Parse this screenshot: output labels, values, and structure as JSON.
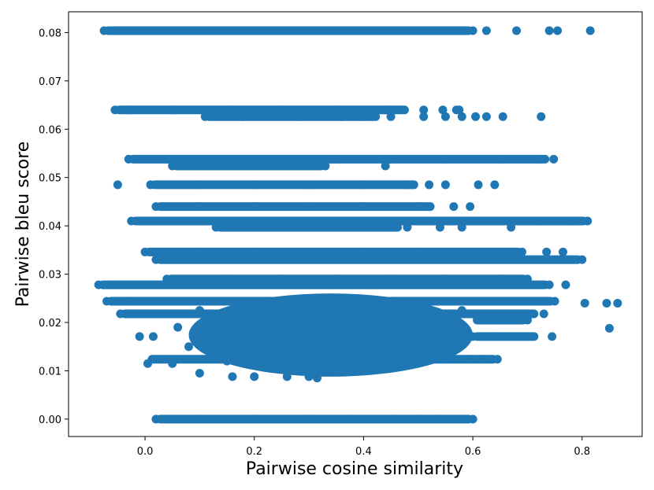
{
  "chart_data": {
    "type": "scatter",
    "title": "",
    "xlabel": "Pairwise cosine similarity",
    "ylabel": "Pairwise bleu score",
    "xlim": [
      -0.14,
      0.91
    ],
    "ylim": [
      -0.0036,
      0.0843
    ],
    "xticks": [
      0.0,
      0.2,
      0.4,
      0.6,
      0.8
    ],
    "xtick_labels": [
      "0.0",
      "0.2",
      "0.4",
      "0.6",
      "0.8"
    ],
    "yticks": [
      0.0,
      0.01,
      0.02,
      0.03,
      0.04,
      0.05,
      0.06,
      0.07,
      0.08
    ],
    "ytick_labels": [
      "0.00",
      "0.01",
      "0.02",
      "0.03",
      "0.04",
      "0.05",
      "0.06",
      "0.07",
      "0.08"
    ],
    "grid": false,
    "legend": "none",
    "color": "#1f77b4",
    "series": [
      {
        "values": [
          {
            "x": -0.075,
            "y": 0.0804
          },
          {
            "x": -0.06,
            "y": 0.0804
          },
          {
            "x": 0.0,
            "y": 0.0804
          },
          {
            "x": 0.1,
            "y": 0.0804
          },
          {
            "x": 0.2,
            "y": 0.0804
          },
          {
            "x": 0.3,
            "y": 0.0804
          },
          {
            "x": 0.4,
            "y": 0.0804
          },
          {
            "x": 0.5,
            "y": 0.0804
          },
          {
            "x": 0.58,
            "y": 0.0804
          },
          {
            "x": 0.6,
            "y": 0.0804
          },
          {
            "x": 0.625,
            "y": 0.0804
          },
          {
            "x": 0.68,
            "y": 0.0804
          },
          {
            "x": 0.74,
            "y": 0.0804
          },
          {
            "x": 0.755,
            "y": 0.0804
          },
          {
            "x": 0.815,
            "y": 0.0804
          },
          {
            "x": -0.055,
            "y": 0.064
          },
          {
            "x": -0.03,
            "y": 0.064
          },
          {
            "x": 0.05,
            "y": 0.064
          },
          {
            "x": 0.15,
            "y": 0.064
          },
          {
            "x": 0.25,
            "y": 0.064
          },
          {
            "x": 0.35,
            "y": 0.064
          },
          {
            "x": 0.44,
            "y": 0.064
          },
          {
            "x": 0.475,
            "y": 0.064
          },
          {
            "x": 0.51,
            "y": 0.064
          },
          {
            "x": 0.545,
            "y": 0.064
          },
          {
            "x": 0.57,
            "y": 0.064
          },
          {
            "x": 0.575,
            "y": 0.064
          },
          {
            "x": 0.11,
            "y": 0.0626
          },
          {
            "x": 0.18,
            "y": 0.0626
          },
          {
            "x": 0.28,
            "y": 0.0626
          },
          {
            "x": 0.36,
            "y": 0.0626
          },
          {
            "x": 0.4,
            "y": 0.0626
          },
          {
            "x": 0.45,
            "y": 0.0626
          },
          {
            "x": 0.51,
            "y": 0.0626
          },
          {
            "x": 0.55,
            "y": 0.0626
          },
          {
            "x": 0.58,
            "y": 0.0626
          },
          {
            "x": 0.605,
            "y": 0.0626
          },
          {
            "x": 0.625,
            "y": 0.0626
          },
          {
            "x": 0.655,
            "y": 0.0626
          },
          {
            "x": 0.725,
            "y": 0.0626
          },
          {
            "x": -0.03,
            "y": 0.0538
          },
          {
            "x": 0.05,
            "y": 0.0538
          },
          {
            "x": 0.15,
            "y": 0.0538
          },
          {
            "x": 0.25,
            "y": 0.0538
          },
          {
            "x": 0.35,
            "y": 0.0538
          },
          {
            "x": 0.45,
            "y": 0.0538
          },
          {
            "x": 0.55,
            "y": 0.0538
          },
          {
            "x": 0.65,
            "y": 0.0538
          },
          {
            "x": 0.72,
            "y": 0.0538
          },
          {
            "x": 0.748,
            "y": 0.0538
          },
          {
            "x": 0.05,
            "y": 0.0524
          },
          {
            "x": 0.1,
            "y": 0.0524
          },
          {
            "x": 0.2,
            "y": 0.0524
          },
          {
            "x": 0.28,
            "y": 0.0524
          },
          {
            "x": 0.33,
            "y": 0.0524
          },
          {
            "x": 0.44,
            "y": 0.0524
          },
          {
            "x": -0.05,
            "y": 0.0485
          },
          {
            "x": 0.01,
            "y": 0.0485
          },
          {
            "x": 0.1,
            "y": 0.0485
          },
          {
            "x": 0.2,
            "y": 0.0485
          },
          {
            "x": 0.3,
            "y": 0.0485
          },
          {
            "x": 0.4,
            "y": 0.0485
          },
          {
            "x": 0.48,
            "y": 0.0485
          },
          {
            "x": 0.52,
            "y": 0.0485
          },
          {
            "x": 0.55,
            "y": 0.0485
          },
          {
            "x": 0.61,
            "y": 0.0485
          },
          {
            "x": 0.64,
            "y": 0.0485
          },
          {
            "x": 0.02,
            "y": 0.044
          },
          {
            "x": 0.1,
            "y": 0.044
          },
          {
            "x": 0.2,
            "y": 0.044
          },
          {
            "x": 0.3,
            "y": 0.044
          },
          {
            "x": 0.4,
            "y": 0.044
          },
          {
            "x": 0.5,
            "y": 0.044
          },
          {
            "x": 0.565,
            "y": 0.044
          },
          {
            "x": 0.595,
            "y": 0.044
          },
          {
            "x": -0.025,
            "y": 0.041
          },
          {
            "x": 0.05,
            "y": 0.041
          },
          {
            "x": 0.15,
            "y": 0.041
          },
          {
            "x": 0.25,
            "y": 0.041
          },
          {
            "x": 0.35,
            "y": 0.041
          },
          {
            "x": 0.45,
            "y": 0.041
          },
          {
            "x": 0.55,
            "y": 0.041
          },
          {
            "x": 0.65,
            "y": 0.041
          },
          {
            "x": 0.72,
            "y": 0.041
          },
          {
            "x": 0.78,
            "y": 0.041
          },
          {
            "x": 0.81,
            "y": 0.041
          },
          {
            "x": 0.13,
            "y": 0.0397
          },
          {
            "x": 0.2,
            "y": 0.0397
          },
          {
            "x": 0.3,
            "y": 0.0397
          },
          {
            "x": 0.4,
            "y": 0.0397
          },
          {
            "x": 0.48,
            "y": 0.0397
          },
          {
            "x": 0.54,
            "y": 0.0397
          },
          {
            "x": 0.58,
            "y": 0.0397
          },
          {
            "x": 0.67,
            "y": 0.0397
          },
          {
            "x": 0.0,
            "y": 0.0346
          },
          {
            "x": 0.1,
            "y": 0.0346
          },
          {
            "x": 0.2,
            "y": 0.0346
          },
          {
            "x": 0.3,
            "y": 0.0346
          },
          {
            "x": 0.4,
            "y": 0.0346
          },
          {
            "x": 0.5,
            "y": 0.0346
          },
          {
            "x": 0.6,
            "y": 0.0346
          },
          {
            "x": 0.69,
            "y": 0.0346
          },
          {
            "x": 0.735,
            "y": 0.0346
          },
          {
            "x": 0.765,
            "y": 0.0346
          },
          {
            "x": 0.02,
            "y": 0.033
          },
          {
            "x": 0.1,
            "y": 0.033
          },
          {
            "x": 0.2,
            "y": 0.033
          },
          {
            "x": 0.3,
            "y": 0.033
          },
          {
            "x": 0.4,
            "y": 0.033
          },
          {
            "x": 0.5,
            "y": 0.033
          },
          {
            "x": 0.6,
            "y": 0.033
          },
          {
            "x": 0.7,
            "y": 0.033
          },
          {
            "x": 0.8,
            "y": 0.033
          },
          {
            "x": 0.04,
            "y": 0.029
          },
          {
            "x": 0.15,
            "y": 0.029
          },
          {
            "x": 0.25,
            "y": 0.029
          },
          {
            "x": 0.35,
            "y": 0.029
          },
          {
            "x": 0.45,
            "y": 0.029
          },
          {
            "x": 0.55,
            "y": 0.029
          },
          {
            "x": 0.65,
            "y": 0.029
          },
          {
            "x": 0.7,
            "y": 0.029
          },
          {
            "x": -0.085,
            "y": 0.0278
          },
          {
            "x": -0.045,
            "y": 0.0278
          },
          {
            "x": 0.05,
            "y": 0.0278
          },
          {
            "x": 0.15,
            "y": 0.0278
          },
          {
            "x": 0.25,
            "y": 0.0278
          },
          {
            "x": 0.35,
            "y": 0.0278
          },
          {
            "x": 0.45,
            "y": 0.0278
          },
          {
            "x": 0.55,
            "y": 0.0278
          },
          {
            "x": 0.65,
            "y": 0.0278
          },
          {
            "x": 0.74,
            "y": 0.0278
          },
          {
            "x": 0.77,
            "y": 0.0278
          },
          {
            "x": -0.07,
            "y": 0.0244
          },
          {
            "x": -0.03,
            "y": 0.0244
          },
          {
            "x": 0.02,
            "y": 0.0244
          },
          {
            "x": 0.6,
            "y": 0.0244
          },
          {
            "x": 0.7,
            "y": 0.0244
          },
          {
            "x": 0.75,
            "y": 0.0244
          },
          {
            "x": 0.805,
            "y": 0.024
          },
          {
            "x": 0.845,
            "y": 0.024
          },
          {
            "x": 0.865,
            "y": 0.024
          },
          {
            "x": -0.045,
            "y": 0.0218
          },
          {
            "x": 0.0,
            "y": 0.0218
          },
          {
            "x": 0.6,
            "y": 0.0218
          },
          {
            "x": 0.67,
            "y": 0.0218
          },
          {
            "x": 0.7,
            "y": 0.0218
          },
          {
            "x": 0.73,
            "y": 0.0218
          },
          {
            "x": 0.85,
            "y": 0.0188
          },
          {
            "x": 0.63,
            "y": 0.0205
          },
          {
            "x": 0.66,
            "y": 0.0205
          },
          {
            "x": 0.7,
            "y": 0.0205
          },
          {
            "x": -0.01,
            "y": 0.0171
          },
          {
            "x": 0.015,
            "y": 0.0171
          },
          {
            "x": 0.6,
            "y": 0.0171
          },
          {
            "x": 0.64,
            "y": 0.0171
          },
          {
            "x": 0.745,
            "y": 0.0171
          },
          {
            "x": 0.005,
            "y": 0.0115
          },
          {
            "x": 0.05,
            "y": 0.0115
          },
          {
            "x": 0.55,
            "y": 0.0124
          },
          {
            "x": 0.59,
            "y": 0.0124
          },
          {
            "x": 0.62,
            "y": 0.0124
          },
          {
            "x": 0.645,
            "y": 0.0124
          },
          {
            "x": 0.1,
            "y": 0.0095
          },
          {
            "x": 0.16,
            "y": 0.0088
          },
          {
            "x": 0.2,
            "y": 0.0088
          },
          {
            "x": 0.26,
            "y": 0.0088
          },
          {
            "x": 0.3,
            "y": 0.0088
          },
          {
            "x": 0.315,
            "y": 0.0085
          },
          {
            "x": 0.06,
            "y": 0.019
          },
          {
            "x": 0.12,
            "y": 0.019
          },
          {
            "x": 0.18,
            "y": 0.019
          },
          {
            "x": 0.24,
            "y": 0.019
          },
          {
            "x": 0.3,
            "y": 0.019
          },
          {
            "x": 0.36,
            "y": 0.019
          },
          {
            "x": 0.42,
            "y": 0.019
          },
          {
            "x": 0.48,
            "y": 0.019
          },
          {
            "x": 0.52,
            "y": 0.019
          },
          {
            "x": 0.56,
            "y": 0.017
          },
          {
            "x": 0.08,
            "y": 0.015
          },
          {
            "x": 0.14,
            "y": 0.015
          },
          {
            "x": 0.2,
            "y": 0.015
          },
          {
            "x": 0.26,
            "y": 0.015
          },
          {
            "x": 0.32,
            "y": 0.015
          },
          {
            "x": 0.38,
            "y": 0.015
          },
          {
            "x": 0.44,
            "y": 0.015
          },
          {
            "x": 0.5,
            "y": 0.015
          },
          {
            "x": 0.55,
            "y": 0.0145
          },
          {
            "x": 0.1,
            "y": 0.0225
          },
          {
            "x": 0.16,
            "y": 0.0225
          },
          {
            "x": 0.22,
            "y": 0.0225
          },
          {
            "x": 0.28,
            "y": 0.0225
          },
          {
            "x": 0.34,
            "y": 0.0225
          },
          {
            "x": 0.4,
            "y": 0.0225
          },
          {
            "x": 0.46,
            "y": 0.0225
          },
          {
            "x": 0.52,
            "y": 0.0225
          },
          {
            "x": 0.58,
            "y": 0.0225
          },
          {
            "x": 0.15,
            "y": 0.012
          },
          {
            "x": 0.22,
            "y": 0.012
          },
          {
            "x": 0.29,
            "y": 0.012
          },
          {
            "x": 0.36,
            "y": 0.012
          },
          {
            "x": 0.43,
            "y": 0.012
          },
          {
            "x": 0.5,
            "y": 0.012
          },
          {
            "x": 0.02,
            "y": 0.0
          },
          {
            "x": 0.1,
            "y": 0.0
          },
          {
            "x": 0.2,
            "y": 0.0
          },
          {
            "x": 0.3,
            "y": 0.0
          },
          {
            "x": 0.38,
            "y": 0.0
          },
          {
            "x": 0.46,
            "y": 0.0
          },
          {
            "x": 0.5,
            "y": 0.0
          },
          {
            "x": 0.54,
            "y": 0.0
          },
          {
            "x": 0.6,
            "y": 0.0
          }
        ]
      }
    ],
    "bands": [
      {
        "x0": -0.075,
        "x1": 0.6,
        "y": 0.0804
      },
      {
        "x0": -0.055,
        "x1": 0.48,
        "y": 0.064
      },
      {
        "x0": 0.11,
        "x1": 0.43,
        "y": 0.0626
      },
      {
        "x0": -0.03,
        "x1": 0.74,
        "y": 0.0538
      },
      {
        "x0": 0.05,
        "x1": 0.33,
        "y": 0.0524
      },
      {
        "x0": 0.01,
        "x1": 0.5,
        "y": 0.0485
      },
      {
        "x0": 0.02,
        "x1": 0.53,
        "y": 0.044
      },
      {
        "x0": -0.025,
        "x1": 0.81,
        "y": 0.041
      },
      {
        "x0": 0.13,
        "x1": 0.47,
        "y": 0.0397
      },
      {
        "x0": 0.0,
        "x1": 0.69,
        "y": 0.0346
      },
      {
        "x0": 0.02,
        "x1": 0.8,
        "y": 0.033
      },
      {
        "x0": 0.04,
        "x1": 0.7,
        "y": 0.029
      },
      {
        "x0": -0.085,
        "x1": 0.74,
        "y": 0.0278
      },
      {
        "x0": -0.07,
        "x1": 0.75,
        "y": 0.0244
      },
      {
        "x0": -0.045,
        "x1": 0.72,
        "y": 0.0218
      },
      {
        "x0": 0.6,
        "x1": 0.7,
        "y": 0.0205
      },
      {
        "x0": 0.6,
        "x1": 0.72,
        "y": 0.0171
      },
      {
        "x0": 0.005,
        "x1": 0.645,
        "y": 0.0124
      },
      {
        "x0": 0.02,
        "x1": 0.6,
        "y": 0.0
      }
    ],
    "blob": {
      "x0": 0.08,
      "x1": 0.6,
      "y0": 0.0088,
      "y1": 0.026
    }
  }
}
